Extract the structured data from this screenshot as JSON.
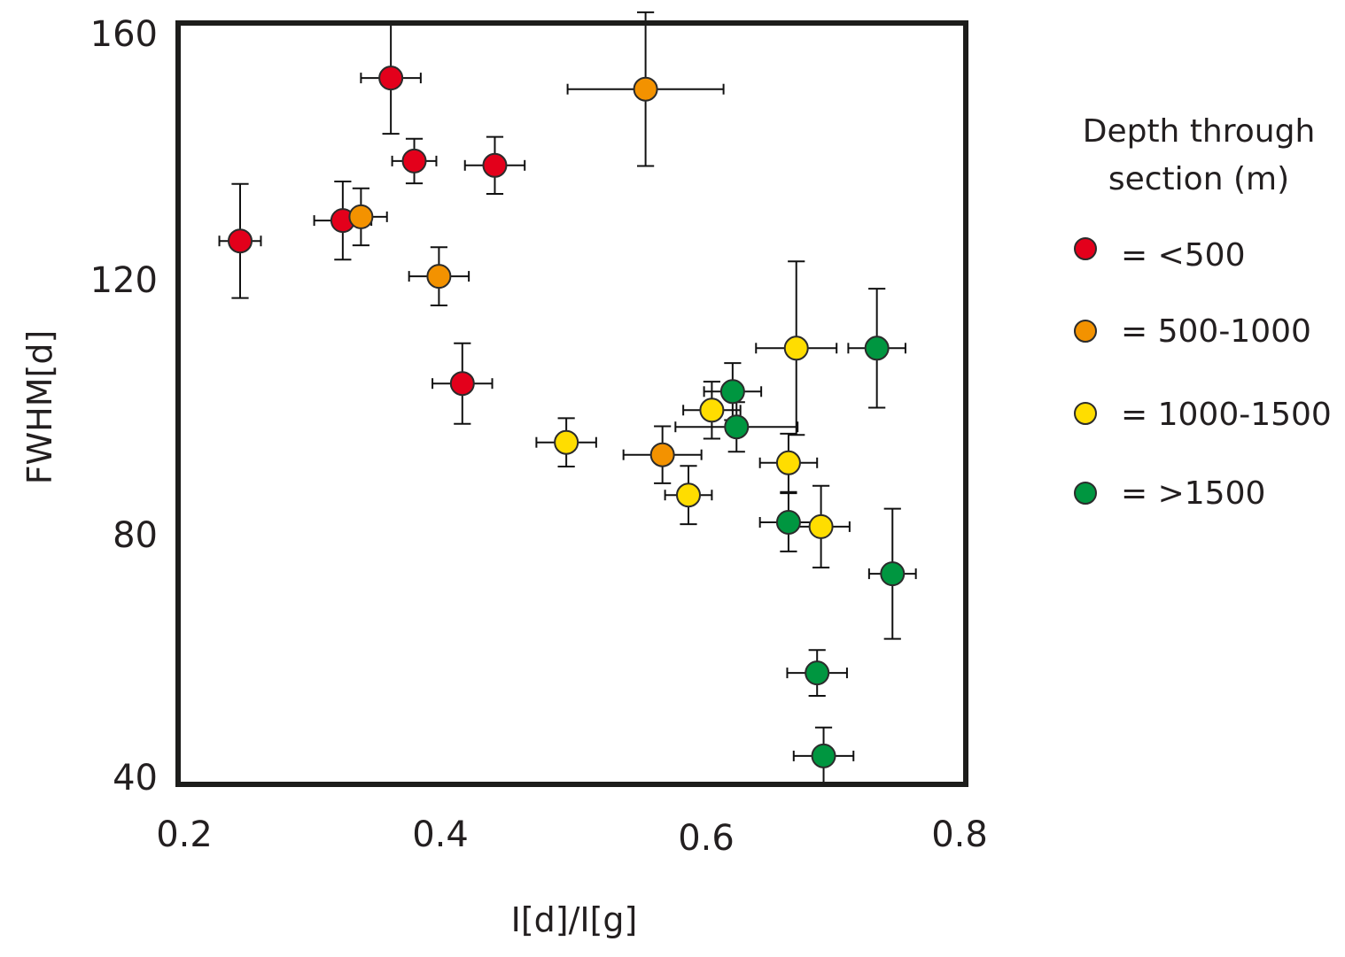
{
  "chart_data": {
    "type": "scatter",
    "title": "",
    "xlabel": "I[d]/I[g]",
    "ylabel": "FWHM[d]",
    "xlim": [
      0.2,
      0.8
    ],
    "ylim": [
      40,
      160
    ],
    "xticks": [
      "0.2",
      "0.4",
      "0.6",
      "0.8"
    ],
    "yticks": [
      "40",
      "80",
      "120",
      "160"
    ],
    "grid": false,
    "legend": {
      "title_lines": [
        "Depth through",
        "section (m)"
      ],
      "placement": "right"
    },
    "series": [
      {
        "name": "= <500",
        "color": "#e3001b",
        "points": [
          {
            "x": 0.361,
            "y": 152.7,
            "xerr": 0.023,
            "yerr": 9.0
          },
          {
            "x": 0.379,
            "y": 139.3,
            "xerr": 0.017,
            "yerr": 3.6
          },
          {
            "x": 0.441,
            "y": 138.6,
            "xerr": 0.023,
            "yerr": 4.6
          },
          {
            "x": 0.245,
            "y": 126.4,
            "xerr": 0.016,
            "yerr": 9.2
          },
          {
            "x": 0.324,
            "y": 129.7,
            "xerr": 0.022,
            "yerr": 6.3
          },
          {
            "x": 0.416,
            "y": 103.4,
            "xerr": 0.023,
            "yerr": 6.5
          }
        ]
      },
      {
        "name": "= 500-1000",
        "color": "#f39200",
        "points": [
          {
            "x": 0.338,
            "y": 130.3,
            "xerr": 0.02,
            "yerr": 4.6
          },
          {
            "x": 0.398,
            "y": 120.7,
            "xerr": 0.023,
            "yerr": 4.7
          },
          {
            "x": 0.557,
            "y": 150.9,
            "xerr": 0.06,
            "yerr": 12.4
          },
          {
            "x": 0.57,
            "y": 91.9,
            "xerr": 0.03,
            "yerr": 4.6
          }
        ]
      },
      {
        "name": "= 1000-1500",
        "color": "#ffdd00",
        "points": [
          {
            "x": 0.496,
            "y": 93.9,
            "xerr": 0.023,
            "yerr": 3.9
          },
          {
            "x": 0.608,
            "y": 99.1,
            "xerr": 0.022,
            "yerr": 4.6
          },
          {
            "x": 0.59,
            "y": 85.4,
            "xerr": 0.018,
            "yerr": 4.7
          },
          {
            "x": 0.667,
            "y": 90.6,
            "xerr": 0.022,
            "yerr": 4.7
          },
          {
            "x": 0.673,
            "y": 109.1,
            "xerr": 0.031,
            "yerr": 14.0
          },
          {
            "x": 0.692,
            "y": 80.3,
            "xerr": 0.022,
            "yerr": 6.6
          }
        ]
      },
      {
        "name": "= >1500",
        "color": "#009640",
        "points": [
          {
            "x": 0.624,
            "y": 102.1,
            "xerr": 0.022,
            "yerr": 4.6
          },
          {
            "x": 0.627,
            "y": 96.4,
            "xerr": 0.047,
            "yerr": 4.0
          },
          {
            "x": 0.667,
            "y": 81.0,
            "xerr": 0.022,
            "yerr": 4.7
          },
          {
            "x": 0.735,
            "y": 109.1,
            "xerr": 0.022,
            "yerr": 9.6
          },
          {
            "x": 0.747,
            "y": 72.7,
            "xerr": 0.018,
            "yerr": 10.5
          },
          {
            "x": 0.689,
            "y": 56.7,
            "xerr": 0.023,
            "yerr": 3.7
          },
          {
            "x": 0.694,
            "y": 43.3,
            "xerr": 0.023,
            "yerr": 4.6
          }
        ]
      }
    ]
  }
}
